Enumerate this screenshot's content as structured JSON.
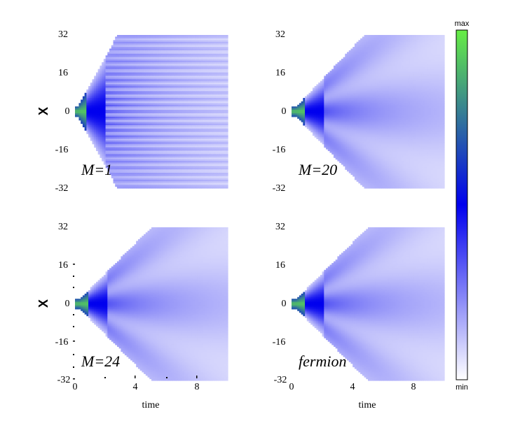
{
  "chart_data": {
    "type": "heatmap",
    "colorscale": {
      "stops": [
        "#ffffff",
        "#0000ee",
        "#66ee44"
      ],
      "max_label": "max",
      "min_label": "min"
    },
    "shared": {
      "xlabel": "time",
      "ylabel": "X",
      "xticks": [
        "0",
        "4",
        "8"
      ],
      "yticks": [
        "32",
        "16",
        "0",
        "-16",
        "-32"
      ],
      "xlim": [
        0,
        10
      ],
      "ylim": [
        -32,
        32
      ]
    },
    "panels": [
      {
        "id": "m1",
        "label": "M=1",
        "spread_slope": 3.6,
        "core_length": 0.8,
        "bands": 60
      },
      {
        "id": "m20",
        "label": "M=20",
        "spread_slope": 2.1,
        "core_length": 0.9,
        "bands": 5
      },
      {
        "id": "m24",
        "label": "M=24",
        "spread_slope": 2.0,
        "core_length": 0.9,
        "bands": 5
      },
      {
        "id": "fermion",
        "label": "fermion",
        "spread_slope": 2.0,
        "core_length": 0.9,
        "bands": 5
      }
    ]
  }
}
